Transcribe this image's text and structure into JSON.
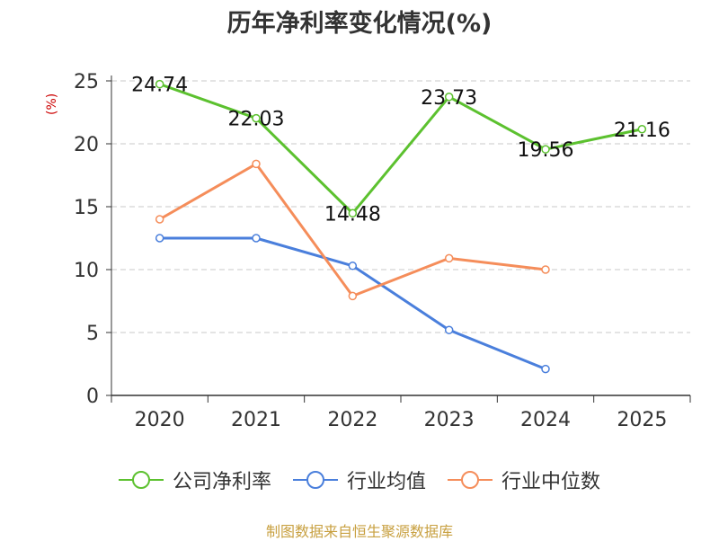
{
  "chart_data": {
    "type": "line",
    "title": "历年净利率变化情况(%)",
    "ylabel": "(%)",
    "xlabel": "",
    "categories": [
      "2020",
      "2021",
      "2022",
      "2023",
      "2024",
      "2025"
    ],
    "ylim": [
      0,
      25
    ],
    "yticks": [
      0,
      5,
      10,
      15,
      20,
      25
    ],
    "grid": true,
    "legend_position": "bottom",
    "series": [
      {
        "name": "公司净利率",
        "color": "#5cc12f",
        "values": [
          24.74,
          22.03,
          14.48,
          23.73,
          19.56,
          21.16
        ],
        "labels": [
          "24.74",
          "22.03",
          "14.48",
          "23.73",
          "19.56",
          "21.16"
        ]
      },
      {
        "name": "行业均值",
        "color": "#4a7fdc",
        "values": [
          12.5,
          12.5,
          10.3,
          5.2,
          2.1,
          null
        ]
      },
      {
        "name": "行业中位数",
        "color": "#f58d5a",
        "values": [
          14.0,
          18.4,
          7.9,
          10.9,
          10.0,
          null
        ]
      }
    ]
  },
  "source": "制图数据来自恒生聚源数据库"
}
